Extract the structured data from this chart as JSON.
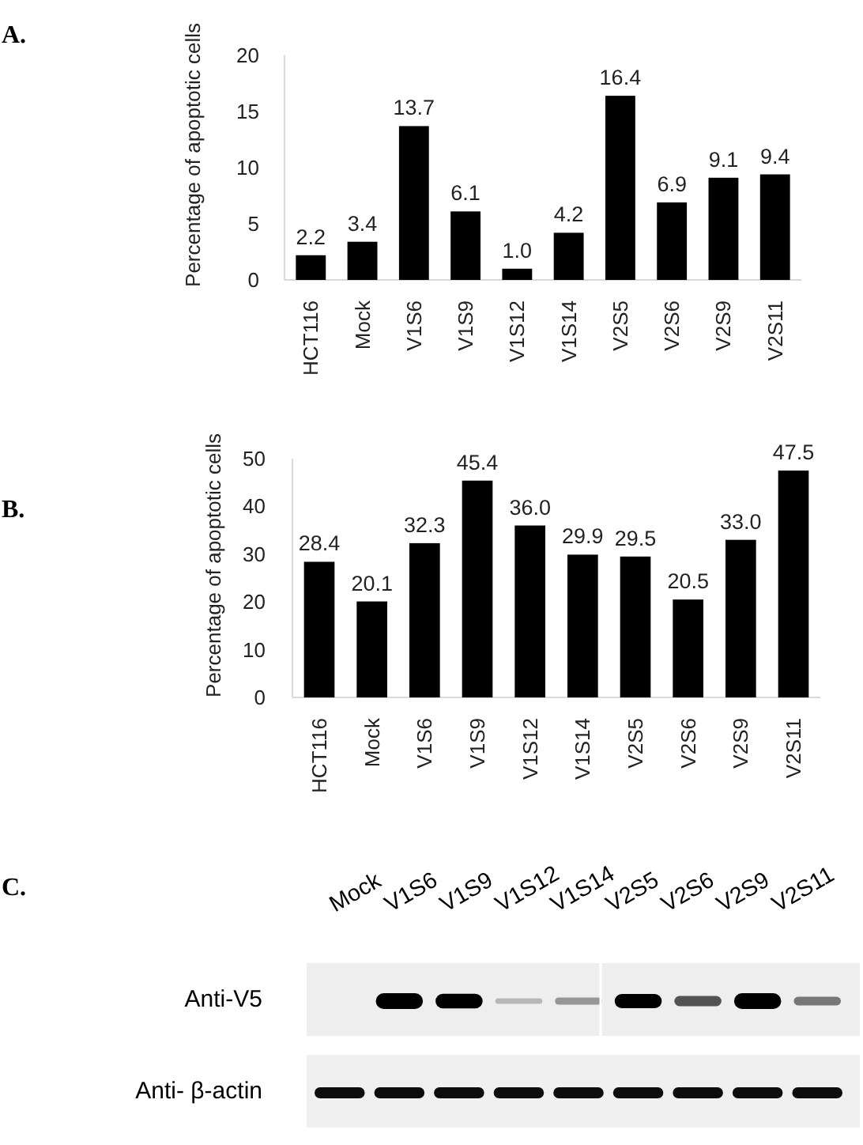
{
  "chart_data": [
    {
      "type": "bar",
      "annotations": [
        "A."
      ],
      "ylabel": "Percentage of apoptotic cells",
      "categories": [
        "HCT116",
        "Mock",
        "V1S6",
        "V1S9",
        "V1S12",
        "V1S14",
        "V2S5",
        "V2S6",
        "V2S9",
        "V2S11"
      ],
      "values": [
        2.2,
        3.4,
        13.7,
        6.1,
        1.0,
        4.2,
        16.4,
        6.9,
        9.1,
        9.4
      ],
      "value_labels": [
        "2.2",
        "3.4",
        "13.7",
        "6.1",
        "1.0",
        "4.2",
        "16.4",
        "6.9",
        "9.1",
        "9.4"
      ],
      "color": "#000000",
      "ylim": [
        0,
        20
      ],
      "yticks": [
        0,
        5,
        10,
        15,
        20
      ]
    },
    {
      "type": "bar",
      "annotations": [
        "B."
      ],
      "ylabel": "Percentage of apoptotic cells",
      "categories": [
        "HCT116",
        "Mock",
        "V1S6",
        "V1S9",
        "V1S12",
        "V1S14",
        "V2S5",
        "V2S6",
        "V2S9",
        "V2S11"
      ],
      "values": [
        28.4,
        20.1,
        32.3,
        45.4,
        36.0,
        29.9,
        29.5,
        20.5,
        33.0,
        47.5
      ],
      "value_labels": [
        "28.4",
        "20.1",
        "32.3",
        "45.4",
        "36.0",
        "29.9",
        "29.5",
        "20.5",
        "33.0",
        "47.5"
      ],
      "color": "#000000",
      "ylim": [
        0,
        50
      ],
      "yticks": [
        0,
        10,
        20,
        30,
        40,
        50
      ]
    },
    {
      "type": "other",
      "annotations": [
        "C."
      ],
      "categories": [
        "Mock",
        "V1S6",
        "V1S9",
        "V1S12",
        "V1S14",
        "V2S5",
        "V2S6",
        "V2S9",
        "V2S11"
      ],
      "y_categories": [
        "Anti-V5",
        "Anti- β-actin"
      ]
    }
  ]
}
